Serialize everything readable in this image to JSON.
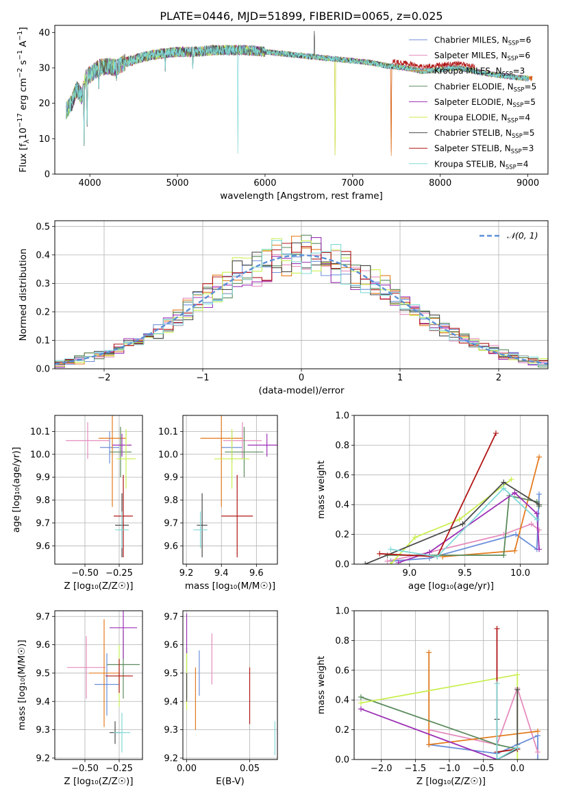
{
  "figure": {
    "title": "PLATE=0446, MJD=51899, FIBERID=0065, z=0.025"
  },
  "models": [
    {
      "name": "Chabrier MILES",
      "nssp": 6,
      "color": "#6b8fd9"
    },
    {
      "name": "Salpeter MILES",
      "nssp": 6,
      "color": "#e58cbd"
    },
    {
      "name": "Kroupa MILES",
      "nssp": 3,
      "color": "#e27a1c"
    },
    {
      "name": "Chabrier ELODIE",
      "nssp": 5,
      "color": "#5a8a5c"
    },
    {
      "name": "Salpeter ELODIE",
      "nssp": 5,
      "color": "#9c2fb5"
    },
    {
      "name": "Kroupa ELODIE",
      "nssp": 4,
      "color": "#c9ef4f"
    },
    {
      "name": "Chabrier STELIB",
      "nssp": 5,
      "color": "#4a4a4a"
    },
    {
      "name": "Salpeter STELIB",
      "nssp": 3,
      "color": "#b01515"
    },
    {
      "name": "Kroupa STELIB",
      "nssp": 4,
      "color": "#7fd9d7"
    }
  ],
  "chart_data": [
    {
      "id": "spectrum",
      "type": "line",
      "xlabel": "wavelength [Angstrom, rest frame]",
      "ylabel": "Flux [f",
      "xlim": [
        3600,
        9230
      ],
      "ylim": [
        0,
        42
      ],
      "xticks": [
        4000,
        5000,
        6000,
        7000,
        8000,
        9000
      ],
      "yticks": [
        0,
        10,
        20,
        30,
        40
      ],
      "grid": false,
      "legend": "top-right",
      "continuum": [
        [
          3730,
          18
        ],
        [
          3790,
          20
        ],
        [
          3850,
          24
        ],
        [
          3910,
          22
        ],
        [
          3950,
          27
        ],
        [
          4000,
          28
        ],
        [
          4100,
          30
        ],
        [
          4200,
          30.5
        ],
        [
          4300,
          30
        ],
        [
          4400,
          31.5
        ],
        [
          4600,
          33
        ],
        [
          4800,
          34
        ],
        [
          5000,
          34.5
        ],
        [
          5200,
          34.5
        ],
        [
          5400,
          35
        ],
        [
          5600,
          35
        ],
        [
          5800,
          35
        ],
        [
          6000,
          34.5
        ],
        [
          6200,
          34
        ],
        [
          6400,
          33.5
        ],
        [
          6600,
          33
        ],
        [
          6800,
          32.5
        ],
        [
          7000,
          32
        ],
        [
          7200,
          31.5
        ],
        [
          7400,
          30.5
        ],
        [
          7600,
          30
        ],
        [
          7800,
          29
        ],
        [
          8000,
          29.5
        ],
        [
          8200,
          30
        ],
        [
          8500,
          28.5
        ],
        [
          8800,
          27.5
        ],
        [
          9000,
          27
        ],
        [
          9050,
          27
        ]
      ],
      "features": [
        {
          "x": 3934,
          "y": 8
        },
        {
          "x": 3969,
          "y": 11
        },
        {
          "x": 4102,
          "y": 24
        },
        {
          "x": 4304,
          "y": 26
        },
        {
          "x": 4861,
          "y": 29
        },
        {
          "x": 5175,
          "y": 29
        },
        {
          "x": 5690,
          "y": 0
        },
        {
          "x": 6563,
          "y": 42
        },
        {
          "x": 6800,
          "y": 0
        },
        {
          "x": 7440,
          "y": 0
        }
      ]
    },
    {
      "id": "residuals",
      "type": "line",
      "xlabel": "(data-model)/error",
      "ylabel": "Normed distribution",
      "xlim": [
        -2.5,
        2.5
      ],
      "ylim": [
        0,
        0.52
      ],
      "xticks": [
        -2,
        -1,
        0,
        1,
        2
      ],
      "yticks": [
        0.0,
        0.1,
        0.2,
        0.3,
        0.4,
        0.5
      ],
      "grid": true,
      "legend": "top-right",
      "legend_label": "𝒩(0, 1)",
      "bin_width": 0.1
    },
    {
      "id": "age-vs-Z",
      "type": "scatter",
      "xlabel": "Z [log₁₀(Z/Z☉)]",
      "ylabel": "age  [log₁₀(age/yr)]",
      "xlim": [
        -0.72,
        -0.08
      ],
      "ylim": [
        9.52,
        10.17
      ],
      "xticks": [
        -0.5,
        -0.25
      ],
      "yticks": [
        9.6,
        9.7,
        9.8,
        9.9,
        10.0,
        10.1
      ],
      "grid": true,
      "points": [
        {
          "m": 0,
          "x": -0.32,
          "y": 10.03,
          "xerr": 0.07,
          "yerr": 0.07
        },
        {
          "m": 1,
          "x": -0.48,
          "y": 10.06,
          "xerr": 0.16,
          "yerr": 0.08
        },
        {
          "m": 2,
          "x": -0.3,
          "y": 10.07,
          "xerr": 0.1,
          "yerr": 0.3
        },
        {
          "m": 3,
          "x": -0.24,
          "y": 10.01,
          "xerr": 0.08,
          "yerr": 0.11
        },
        {
          "m": 4,
          "x": -0.23,
          "y": 10.04,
          "xerr": 0.07,
          "yerr": 0.05
        },
        {
          "m": 5,
          "x": -0.2,
          "y": 9.98,
          "xerr": 0.07,
          "yerr": 0.13
        },
        {
          "m": 6,
          "x": -0.23,
          "y": 9.69,
          "xerr": 0.05,
          "yerr": 0.14
        },
        {
          "m": 7,
          "x": -0.22,
          "y": 9.73,
          "xerr": 0.07,
          "yerr": 0.18
        },
        {
          "m": 8,
          "x": -0.23,
          "y": 9.67,
          "xerr": 0.05,
          "yerr": 0.08
        }
      ]
    },
    {
      "id": "age-vs-mass",
      "type": "scatter",
      "xlabel": "mass [log₁₀(M/M☉)]",
      "ylabel": "",
      "xlim": [
        9.18,
        9.72
      ],
      "ylim": [
        9.52,
        10.17
      ],
      "xticks": [
        9.2,
        9.4,
        9.6
      ],
      "yticks": [
        9.6,
        9.7,
        9.8,
        9.9,
        10.0,
        10.1
      ],
      "grid": true,
      "points": [
        {
          "m": 0,
          "x": 9.46,
          "y": 10.03,
          "xerr": 0.06,
          "yerr": 0.07
        },
        {
          "m": 1,
          "x": 9.52,
          "y": 10.06,
          "xerr": 0.11,
          "yerr": 0.08
        },
        {
          "m": 2,
          "x": 9.4,
          "y": 10.07,
          "xerr": 0.12,
          "yerr": 0.3
        },
        {
          "m": 3,
          "x": 9.53,
          "y": 10.01,
          "xerr": 0.11,
          "yerr": 0.11
        },
        {
          "m": 4,
          "x": 9.66,
          "y": 10.04,
          "xerr": 0.11,
          "yerr": 0.05
        },
        {
          "m": 5,
          "x": 9.46,
          "y": 9.98,
          "xerr": 0.1,
          "yerr": 0.13
        },
        {
          "m": 6,
          "x": 9.29,
          "y": 9.69,
          "xerr": 0.03,
          "yerr": 0.14
        },
        {
          "m": 7,
          "x": 9.49,
          "y": 9.73,
          "xerr": 0.09,
          "yerr": 0.18
        },
        {
          "m": 8,
          "x": 9.28,
          "y": 9.67,
          "xerr": 0.04,
          "yerr": 0.08
        }
      ]
    },
    {
      "id": "weight-vs-age",
      "type": "line",
      "xlabel": "age  [log₁₀(age/yr)]",
      "ylabel": "mass weight",
      "xlim": [
        8.5,
        10.25
      ],
      "ylim": [
        0,
        1
      ],
      "xticks": [
        9.0,
        9.5,
        10.0
      ],
      "yticks": [
        0.0,
        0.2,
        0.4,
        0.6,
        0.8,
        1.0
      ],
      "grid": true,
      "series": [
        {
          "m": 0,
          "points": [
            [
              8.83,
              0.02
            ],
            [
              9.18,
              0.04
            ],
            [
              9.96,
              0.2
            ],
            [
              10.15,
              0.1
            ],
            [
              10.17,
              0.47
            ]
          ]
        },
        {
          "m": 1,
          "points": [
            [
              8.8,
              0.02
            ],
            [
              9.18,
              0.08
            ],
            [
              9.85,
              0.2
            ],
            [
              10.1,
              0.27
            ],
            [
              10.17,
              0.23
            ]
          ]
        },
        {
          "m": 2,
          "points": [
            [
              9.3,
              0.05
            ],
            [
              9.95,
              0.09
            ],
            [
              10.17,
              0.72
            ]
          ]
        },
        {
          "m": 3,
          "points": [
            [
              8.8,
              0.06
            ],
            [
              9.85,
              0.06
            ],
            [
              9.9,
              0.46
            ],
            [
              10.15,
              0.42
            ],
            [
              10.17,
              0.39
            ]
          ]
        },
        {
          "m": 4,
          "points": [
            [
              8.9,
              0.01
            ],
            [
              9.18,
              0.08
            ],
            [
              9.95,
              0.48
            ],
            [
              10.15,
              0.34
            ],
            [
              10.17,
              0.1
            ]
          ]
        },
        {
          "m": 5,
          "points": [
            [
              8.83,
              0.0
            ],
            [
              9.05,
              0.18
            ],
            [
              9.45,
              0.3
            ],
            [
              9.92,
              0.57
            ]
          ]
        },
        {
          "m": 6,
          "points": [
            [
              8.6,
              0.0
            ],
            [
              9.48,
              0.27
            ],
            [
              9.85,
              0.55
            ],
            [
              10.17,
              0.4
            ]
          ]
        },
        {
          "m": 7,
          "points": [
            [
              8.73,
              0.07
            ],
            [
              9.25,
              0.05
            ],
            [
              9.78,
              0.88
            ]
          ]
        },
        {
          "m": 8,
          "points": [
            [
              8.83,
              0.1
            ],
            [
              9.25,
              0.05
            ],
            [
              9.85,
              0.51
            ],
            [
              10.15,
              0.3
            ]
          ]
        }
      ]
    },
    {
      "id": "mass-vs-Z",
      "type": "scatter",
      "xlabel": "Z [log₁₀(Z/Z☉)]",
      "ylabel": "mass [log₁₀(M/M☉)]",
      "xlim": [
        -0.72,
        -0.08
      ],
      "ylim": [
        9.195,
        9.72
      ],
      "xticks": [
        -0.5,
        -0.25
      ],
      "yticks": [
        9.2,
        9.3,
        9.4,
        9.5,
        9.6,
        9.7
      ],
      "grid": true,
      "points": [
        {
          "m": 0,
          "x": -0.34,
          "y": 9.46,
          "xerr": 0.09,
          "yerr": 0.11
        },
        {
          "m": 1,
          "x": -0.49,
          "y": 9.52,
          "xerr": 0.14,
          "yerr": 0.11
        },
        {
          "m": 2,
          "x": -0.36,
          "y": 9.5,
          "xerr": 0.11,
          "yerr": 0.19
        },
        {
          "m": 3,
          "x": -0.22,
          "y": 9.53,
          "xerr": 0.12,
          "yerr": 0.12
        },
        {
          "m": 4,
          "x": -0.22,
          "y": 9.66,
          "xerr": 0.1,
          "yerr": 0.11
        },
        {
          "m": 5,
          "x": -0.25,
          "y": 9.49,
          "xerr": 0.08,
          "yerr": 0.11
        },
        {
          "m": 6,
          "x": -0.28,
          "y": 9.29,
          "xerr": 0.04,
          "yerr": 0.04
        },
        {
          "m": 7,
          "x": -0.25,
          "y": 9.49,
          "xerr": 0.1,
          "yerr": 0.06
        },
        {
          "m": 8,
          "x": -0.23,
          "y": 9.29,
          "xerr": 0.06,
          "yerr": 0.07
        }
      ]
    },
    {
      "id": "mass-vs-ebv",
      "type": "scatter",
      "xlabel": "E(B-V)",
      "ylabel": "",
      "xlim": [
        -0.003,
        0.072
      ],
      "ylim": [
        9.195,
        9.72
      ],
      "xticks": [
        0.0,
        0.05
      ],
      "yticks": [
        9.2,
        9.3,
        9.4,
        9.5,
        9.6,
        9.7
      ],
      "grid": true,
      "points": [
        {
          "m": 0,
          "x": 0.01,
          "y": 9.5,
          "xerr": 0,
          "yerr": 0.08
        },
        {
          "m": 1,
          "x": 0.02,
          "y": 9.55,
          "xerr": 0,
          "yerr": 0.09
        },
        {
          "m": 2,
          "x": 0.007,
          "y": 9.41,
          "xerr": 0,
          "yerr": 0.11
        },
        {
          "m": 3,
          "x": 0.0,
          "y": 9.5,
          "xerr": 0,
          "yerr": 0.09
        },
        {
          "m": 4,
          "x": 0.0,
          "y": 9.64,
          "xerr": 0,
          "yerr": 0.07
        },
        {
          "m": 5,
          "x": 0.0,
          "y": 9.47,
          "xerr": 0,
          "yerr": 0.1
        },
        {
          "m": 6,
          "x": 0.0,
          "y": 9.45,
          "xerr": 0,
          "yerr": 0.05
        },
        {
          "m": 7,
          "x": 0.05,
          "y": 9.42,
          "xerr": 0,
          "yerr": 0.1
        },
        {
          "m": 8,
          "x": 0.07,
          "y": 9.27,
          "xerr": 0,
          "yerr": 0.06
        }
      ]
    },
    {
      "id": "weight-vs-Z",
      "type": "line",
      "xlabel": "Z [log₁₀(Z/Z☉)]",
      "ylabel": "mass weight",
      "xlim": [
        -2.4,
        0.45
      ],
      "ylim": [
        0,
        1
      ],
      "xticks": [
        -2.0,
        -1.5,
        -1.0,
        -0.5,
        0.0
      ],
      "yticks": [
        0.0,
        0.2,
        0.4,
        0.6,
        0.8,
        1.0
      ],
      "grid": true,
      "series": [
        {
          "m": 0,
          "points": [
            [
              -1.3,
              0.1
            ],
            [
              -0.3,
              0.04
            ],
            [
              0.0,
              0.1
            ],
            [
              0.3,
              0.16
            ],
            [
              0.3,
              0.0
            ]
          ]
        },
        {
          "m": 1,
          "points": [
            [
              -1.3,
              0.2
            ],
            [
              -0.3,
              0.1
            ],
            [
              0.0,
              0.48
            ],
            [
              0.3,
              0.05
            ]
          ]
        },
        {
          "m": 2,
          "points": [
            [
              -1.3,
              0.72
            ],
            [
              -1.3,
              0.1
            ],
            [
              0.3,
              0.19
            ]
          ]
        },
        {
          "m": 3,
          "points": [
            [
              -2.3,
              0.42
            ],
            [
              -0.3,
              0.1
            ],
            [
              0.0,
              0.07
            ]
          ]
        },
        {
          "m": 4,
          "points": [
            [
              -2.3,
              0.34
            ],
            [
              -0.3,
              0.0
            ],
            [
              0.0,
              0.07
            ]
          ]
        },
        {
          "m": 5,
          "points": [
            [
              -2.3,
              0.38
            ],
            [
              0.0,
              0.57
            ],
            [
              0.0,
              0.0
            ]
          ]
        },
        {
          "m": 6,
          "points": [
            [
              -0.3,
              0.27
            ],
            [
              -0.3,
              0.0
            ],
            [
              0.0,
              0.07
            ],
            [
              0.0,
              0.47
            ]
          ]
        },
        {
          "m": 7,
          "points": [
            [
              -0.3,
              0.88
            ],
            [
              -0.3,
              0.05
            ],
            [
              0.0,
              0.07
            ]
          ]
        },
        {
          "m": 8,
          "points": [
            [
              -0.3,
              0.51
            ],
            [
              -0.3,
              0.0
            ],
            [
              0.0,
              0.08
            ]
          ]
        }
      ]
    }
  ]
}
